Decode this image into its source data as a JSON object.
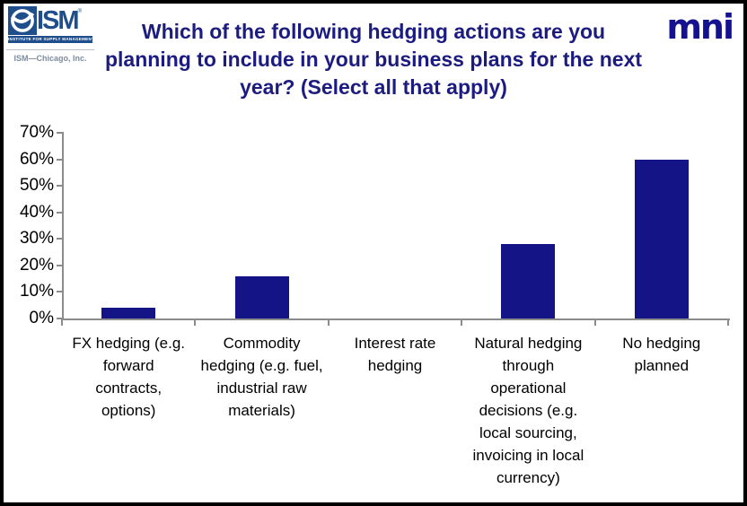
{
  "header": {
    "title": "Which of the following hedging actions are you\nplanning to include in your business plans for the next\nyear? (Select all that apply)",
    "ism_logo": {
      "acronym": "ISM",
      "trademark": "®",
      "tagline": "INSTITUTE FOR SUPPLY MANAGEMENT",
      "affiliate": "ISM—Chicago, Inc."
    },
    "mni_logo": "mni"
  },
  "colors": {
    "title_navy": "#1B1B80",
    "bar_navy": "#141487",
    "mni_navy": "#14128F",
    "ism_blue": "#1F4E8C",
    "axis_gray": "#8C8C8C"
  },
  "chart_data": {
    "type": "bar",
    "title": "Which of the following hedging actions are you planning to include in your business plans for the next year? (Select all that apply)",
    "categories": [
      "FX hedging (e.g.\nforward\ncontracts,\noptions)",
      "Commodity\nhedging (e.g. fuel,\nindustrial raw\nmaterials)",
      "Interest rate\nhedging",
      "Natural hedging\nthrough\noperational\ndecisions (e.g.\nlocal sourcing,\ninvoicing in local\ncurrency)",
      "No hedging\nplanned"
    ],
    "values": [
      4,
      16,
      0,
      28,
      60
    ],
    "unit": "%",
    "xlabel": "",
    "ylabel": "",
    "ylim": [
      0,
      70
    ],
    "ytick_values": [
      0,
      10,
      20,
      30,
      40,
      50,
      60,
      70
    ],
    "yticks": [
      "0%",
      "10%",
      "20%",
      "30%",
      "40%",
      "50%",
      "60%",
      "70%"
    ],
    "grid": false,
    "legend": false,
    "bar_color": "#141487"
  }
}
